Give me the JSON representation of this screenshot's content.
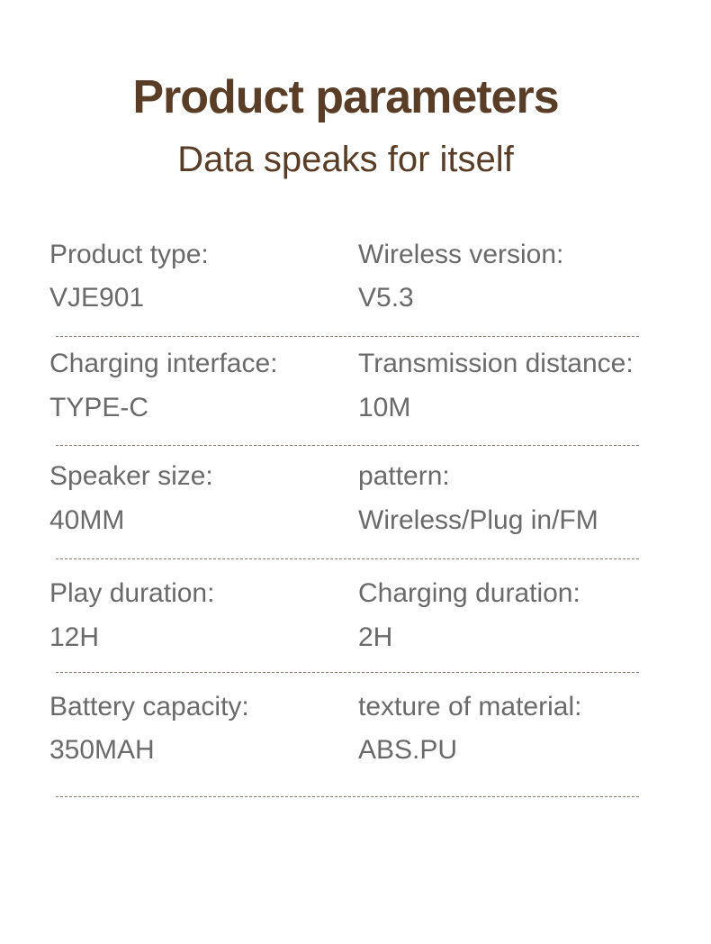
{
  "header": {
    "title": "Product parameters",
    "subtitle": "Data speaks for itself"
  },
  "colors": {
    "title": "#5a3d26",
    "text": "#6a6a6a",
    "divider": "#8c7c6c"
  },
  "rows": [
    [
      {
        "label": "Product type:",
        "value": "VJE901"
      },
      {
        "label": "Wireless version:",
        "value": "V5.3"
      }
    ],
    [
      {
        "label": "Charging interface:",
        "value": "TYPE-C"
      },
      {
        "label": "Transmission distance:",
        "value": "10M"
      }
    ],
    [
      {
        "label": "Speaker size:",
        "value": "40MM"
      },
      {
        "label": "pattern:",
        "value": "Wireless/Plug in/FM"
      }
    ],
    [
      {
        "label": "Play duration:",
        "value": "12H"
      },
      {
        "label": "Charging duration:",
        "value": "2H"
      }
    ],
    [
      {
        "label": "Battery capacity:",
        "value": "350MAH"
      },
      {
        "label": "texture of material:",
        "value": "ABS.PU"
      }
    ]
  ]
}
